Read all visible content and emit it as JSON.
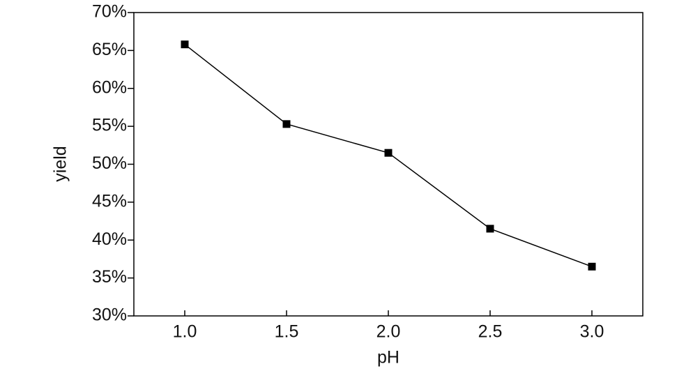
{
  "chart_data": {
    "type": "line",
    "x_label": "pH",
    "y_label": "yield",
    "x": [
      1.0,
      1.5,
      2.0,
      2.5,
      3.0
    ],
    "series": [
      {
        "values": [
          65.8,
          55.3,
          51.5,
          41.5,
          36.5
        ],
        "color": "#000000",
        "marker": "square"
      }
    ],
    "xlim": [
      0.75,
      3.25
    ],
    "xticks": [
      {
        "value": 1,
        "label": "1.0"
      },
      1.5,
      {
        "value": 2,
        "label": "2.0"
      },
      2.5,
      {
        "value": 3,
        "label": "3.0"
      }
    ],
    "ylim": [
      30,
      70
    ],
    "yticks": [
      {
        "value": 30,
        "label": "30%"
      },
      {
        "value": 35,
        "label": "35%"
      },
      {
        "value": 40,
        "label": "40%"
      },
      {
        "value": 45,
        "label": "45%"
      },
      {
        "value": 50,
        "label": "50%"
      },
      {
        "value": 55,
        "label": "55%"
      },
      {
        "value": 60,
        "label": "60%"
      },
      {
        "value": 65,
        "label": "65%"
      },
      {
        "value": 70,
        "label": "70%"
      }
    ],
    "grid": false
  }
}
